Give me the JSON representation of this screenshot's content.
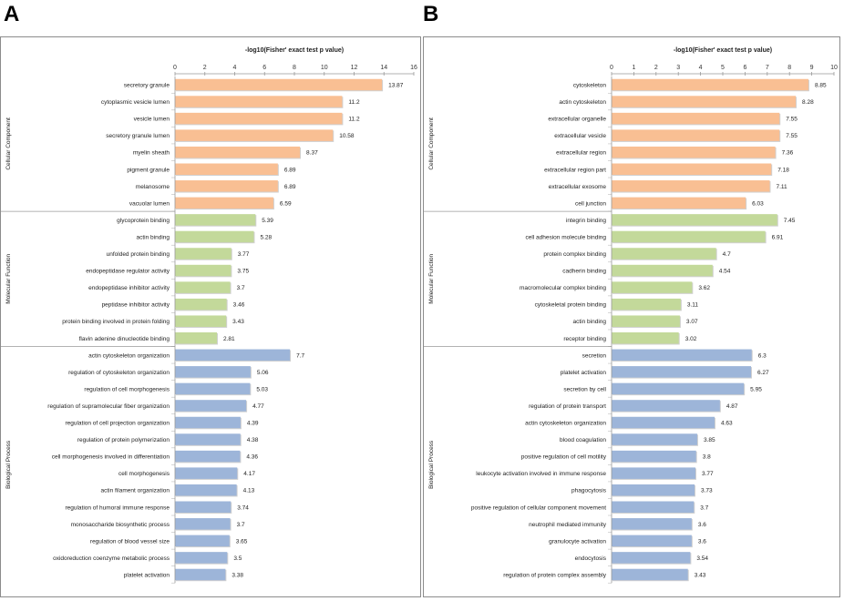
{
  "panel_labels": [
    "A",
    "B"
  ],
  "colors": {
    "cellular_component": "#f9bf93",
    "molecular_function": "#c3d99a",
    "biological_process": "#9db5d9"
  },
  "chart_data": [
    {
      "type": "bar",
      "orientation": "horizontal",
      "title": "-log10(Fisher' exact test p value)",
      "xlim": [
        0,
        16
      ],
      "xticks": [
        0,
        2,
        4,
        6,
        8,
        10,
        12,
        14,
        16
      ],
      "groups": [
        {
          "name": "Cellular Component",
          "color_key": "cellular_component",
          "categories": [
            "secretory granule",
            "cytoplasmic vesicle lumen",
            "vesicle lumen",
            "secretory granule lumen",
            "myelin sheath",
            "pigment granule",
            "melanosome",
            "vacuolar lumen"
          ],
          "values": [
            13.87,
            11.2,
            11.2,
            10.58,
            8.37,
            6.89,
            6.89,
            6.59
          ]
        },
        {
          "name": "Molecular Function",
          "color_key": "molecular_function",
          "categories": [
            "glycoprotein binding",
            "actin binding",
            "unfolded protein binding",
            "endopeptidase regulator activity",
            "endopeptidase inhibitor activity",
            "peptidase inhibitor activity",
            "protein binding involved in protein folding",
            "flavin adenine dinucleotide binding"
          ],
          "values": [
            5.39,
            5.28,
            3.77,
            3.75,
            3.7,
            3.46,
            3.43,
            2.81
          ]
        },
        {
          "name": "Biological Process",
          "color_key": "biological_process",
          "categories": [
            "actin cytoskeleton organization",
            "regulation of cytoskeleton organization",
            "regulation of cell morphogenesis",
            "regulation of supramolecular fiber organization",
            "regulation of cell projection organization",
            "regulation of protein polymerization",
            "cell morphogenesis involved in differentiation",
            "cell morphogenesis",
            "actin filament organization",
            "regulation of humoral immune response",
            "monosaccharide biosynthetic process",
            "regulation of blood vessel size",
            "oxidoreduction coenzyme metabolic process",
            "platelet activation"
          ],
          "values": [
            7.7,
            5.06,
            5.03,
            4.77,
            4.39,
            4.38,
            4.36,
            4.17,
            4.13,
            3.74,
            3.7,
            3.65,
            3.5,
            3.38
          ]
        }
      ]
    },
    {
      "type": "bar",
      "orientation": "horizontal",
      "title": "-log10(Fisher' exact test p value)",
      "xlim": [
        0,
        10
      ],
      "xticks": [
        0,
        1,
        2,
        3,
        4,
        5,
        6,
        7,
        8,
        9,
        10
      ],
      "groups": [
        {
          "name": "Cellular Component",
          "color_key": "cellular_component",
          "categories": [
            "cytoskeleton",
            "actin cytoskeleton",
            "extracellular organelle",
            "extracellular vesicle",
            "extracellular region",
            "extracellular region part",
            "extracellular exosome",
            "cell junction"
          ],
          "values": [
            8.85,
            8.28,
            7.55,
            7.55,
            7.36,
            7.18,
            7.11,
            6.03
          ]
        },
        {
          "name": "Molecular Function",
          "color_key": "molecular_function",
          "categories": [
            "integrin binding",
            "cell adhesion molecule binding",
            "protein complex binding",
            "cadherin binding",
            "macromolecular complex binding",
            "cytoskeletal protein binding",
            "actin binding",
            "receptor binding"
          ],
          "values": [
            7.45,
            6.91,
            4.7,
            4.54,
            3.62,
            3.11,
            3.07,
            3.02
          ]
        },
        {
          "name": "Biological Process",
          "color_key": "biological_process",
          "categories": [
            "secretion",
            "platelet activation",
            "secretion by cell",
            "regulation of protein transport",
            "actin cytoskeleton organization",
            "blood coagulation",
            "positive regulation of cell motility",
            "leukocyte activation involved in immune response",
            "phagocytosis",
            "positive regulation of cellular component movement",
            "neutrophil mediated immunity",
            "granulocyte activation",
            "endocytosis",
            "regulation of protein complex assembly"
          ],
          "values": [
            6.3,
            6.27,
            5.95,
            4.87,
            4.63,
            3.85,
            3.8,
            3.77,
            3.73,
            3.7,
            3.6,
            3.6,
            3.54,
            3.43
          ]
        }
      ]
    }
  ]
}
